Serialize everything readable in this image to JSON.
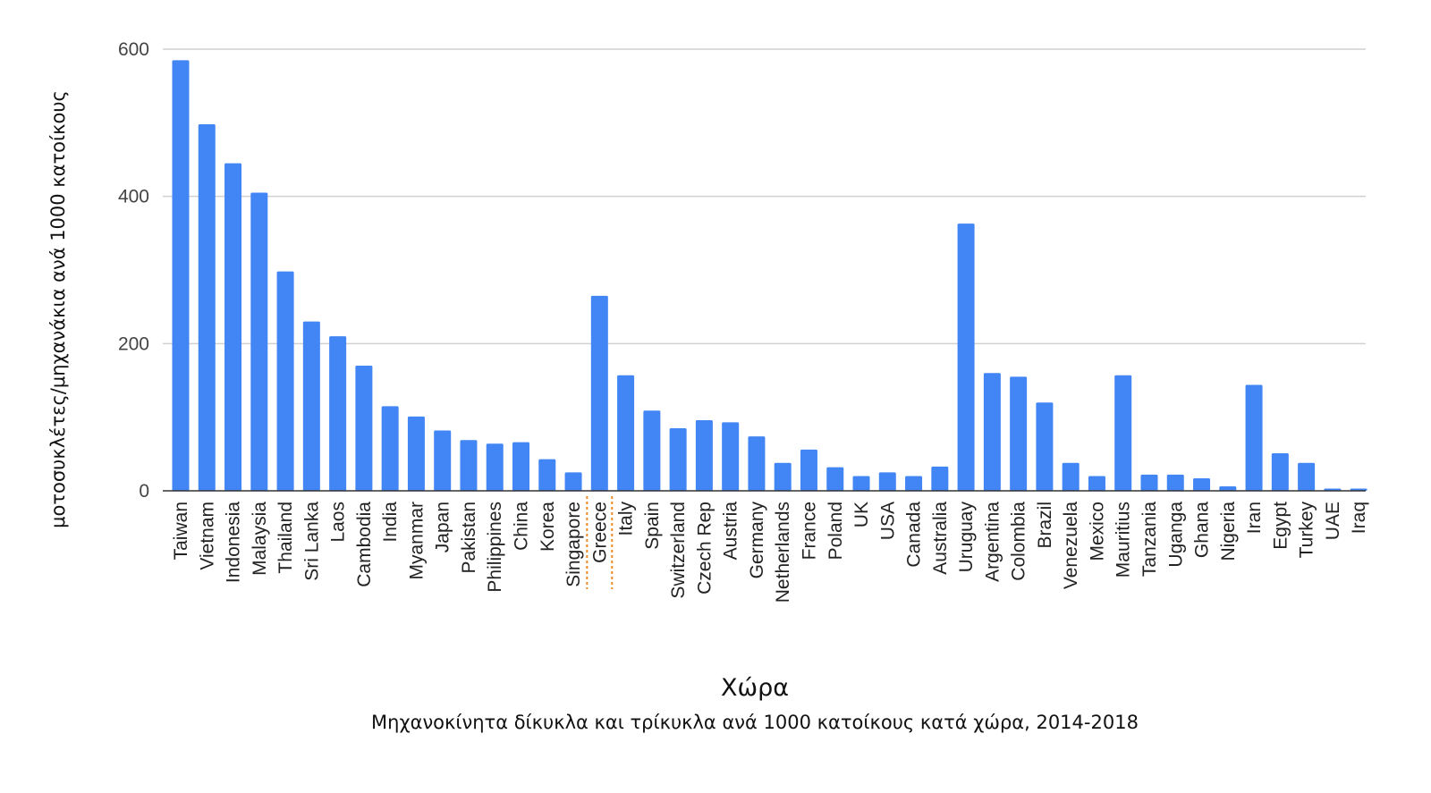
{
  "chart_data": {
    "type": "bar",
    "title": "Μηχανοκίνητα δίκυκλα και τρίκυκλα ανά 1000 κατοίκους κατά χώρα, 2014-2018",
    "xlabel": "Χώρα",
    "ylabel": "μοτοσυκλέτες/μηχανάκια  ανά 1000 κατοίκους",
    "ylim": [
      0,
      600
    ],
    "yticks": [
      0,
      200,
      400,
      600
    ],
    "grid": true,
    "highlight_category": "Greece",
    "bar_color": "#4285f4",
    "grid_color": "#d0d0d0",
    "highlight_color": "#f08a24",
    "categories": [
      "Taiwan",
      "Vietnam",
      "Indonesia",
      "Malaysia",
      "Thailand",
      "Sri Lanka",
      "Laos",
      "Cambodia",
      "India",
      "Myanmar",
      "Japan",
      "Pakistan",
      "Philippines",
      "China",
      "Korea",
      "Singapore",
      "Greece",
      "Italy",
      "Spain",
      "Switzerland",
      "Czech Rep",
      "Austria",
      "Germany",
      "Netherlands",
      "France",
      "Poland",
      "UK",
      "USA",
      "Canada",
      "Australia",
      "Uruguay",
      "Argentina",
      "Colombia",
      "Brazil",
      "Venezuela",
      "Mexico",
      "Mauritius",
      "Tanzania",
      "Uganga",
      "Ghana",
      "Nigeria",
      "Iran",
      "Egypt",
      "Turkey",
      "UAE",
      "Iraq"
    ],
    "values": [
      585,
      498,
      445,
      405,
      298,
      230,
      210,
      170,
      115,
      101,
      82,
      69,
      64,
      66,
      43,
      25,
      265,
      157,
      109,
      85,
      96,
      93,
      74,
      38,
      56,
      32,
      20,
      25,
      20,
      33,
      363,
      160,
      155,
      120,
      38,
      20,
      157,
      22,
      22,
      17,
      6,
      144,
      51,
      38,
      3,
      3
    ]
  }
}
